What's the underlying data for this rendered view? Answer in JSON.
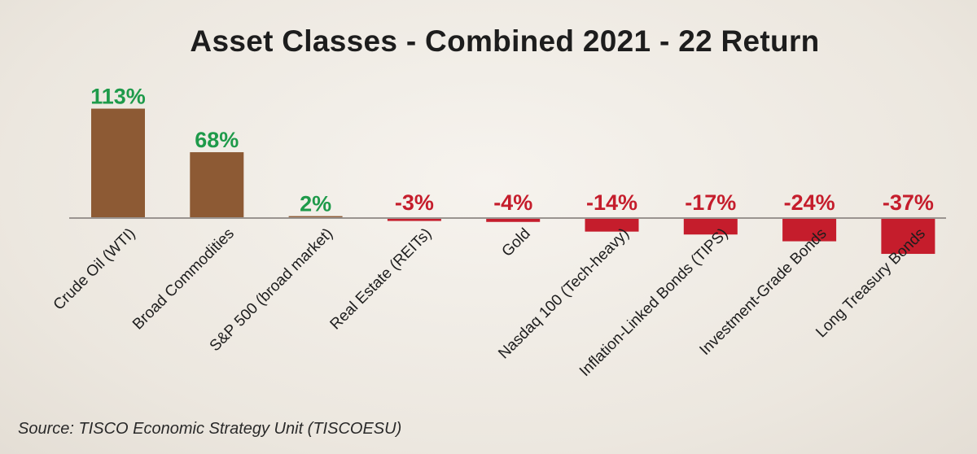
{
  "chart_data": {
    "type": "bar",
    "title": "Asset Classes - Combined 2021 - 22 Return",
    "categories": [
      "Crude Oil (WTI)",
      "Broad Commodities",
      "S&P 500 (broad market)",
      "Real Estate (REITs)",
      "Gold",
      "Nasdaq 100 (Tech-heavy)",
      "Inflation-Linked Bonds (TIPS)",
      "Investment-Grade Bonds",
      "Long Treasury Bonds"
    ],
    "values": [
      113,
      68,
      2,
      -3,
      -4,
      -14,
      -17,
      -24,
      -37
    ],
    "value_labels": [
      "113%",
      "68%",
      "2%",
      "-3%",
      "-4%",
      "-14%",
      "-17%",
      "-24%",
      "-37%"
    ],
    "colors": {
      "positive_bar": "#8d5a34",
      "negative_bar": "#c51d2c",
      "positive_label": "#1e9a4a",
      "negative_label": "#c51d2c",
      "axis": "#9a9490",
      "text": "#1d1d1d"
    },
    "xlabel": "",
    "ylabel": "",
    "grid": false,
    "legend": "none"
  },
  "source": "Source: TISCO Economic Strategy Unit (TISCOESU)"
}
